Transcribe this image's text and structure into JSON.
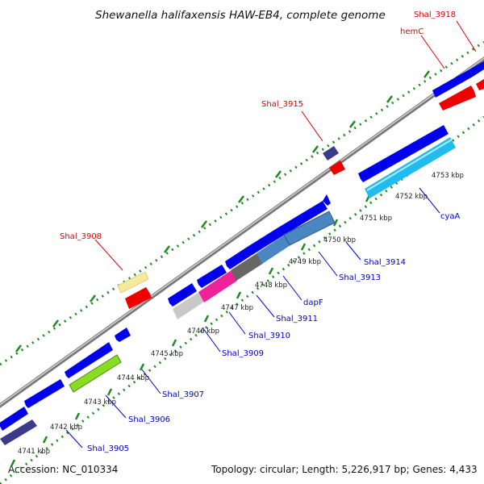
{
  "title": "Shewanella halifaxensis HAW-EB4, complete genome",
  "footer": {
    "accession": "Accession: NC_010334",
    "summary": "Topology: circular; Length: 5,226,917 bp; Genes: 4,433"
  },
  "tick_labels": [
    "4741 kbp",
    "4742 kbp",
    "4743 kbp",
    "4744 kbp",
    "4745 kbp",
    "4746 kbp",
    "4747 kbp",
    "4748 kbp",
    "4749 kbp",
    "4750 kbp",
    "4751 kbp",
    "4752 kbp",
    "4753 kbp"
  ],
  "labels_forward_strand": [
    "Shal_3908",
    "Shal_3915",
    "hemC",
    "Shal_3918"
  ],
  "labels_reverse_strand": [
    "Shal_3905",
    "Shal_3906",
    "Shal_3907",
    "Shal_3909",
    "Shal_3910",
    "Shal_3911",
    "dapF",
    "Shal_3913",
    "Shal_3914",
    "cyaA"
  ],
  "colors": {
    "forward_label": "#dd0000",
    "reverse_label": "#0000cc",
    "cds_blue": "#0000ee",
    "backbone": "#999999",
    "tick_green": "#228822",
    "red_feature": "#ee0000",
    "pale_yellow": "#f6eaa0",
    "navy": "#3b3b8a",
    "lime": "#88dd22",
    "light_gray": "#c8c8c8",
    "magenta": "#ee2299",
    "dark_gray": "#666666",
    "steel_blue": "#4a86c0",
    "cyan": "#22bbee"
  }
}
